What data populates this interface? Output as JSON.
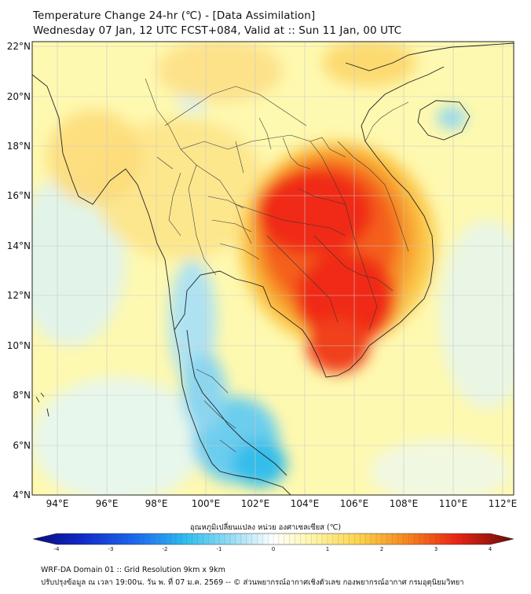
{
  "header": {
    "title": "Temperature Change 24-hr (℃) - [Data Assimilation]",
    "subtitle": "Wednesday 07 Jan, 12 UTC FCST+084, Valid at :: Sun 11 Jan, 00 UTC"
  },
  "map": {
    "lat_ticks": [
      "22°N",
      "20°N",
      "18°N",
      "16°N",
      "14°N",
      "12°N",
      "10°N",
      "8°N",
      "6°N",
      "4°N"
    ],
    "lon_ticks": [
      "94°E",
      "96°E",
      "98°E",
      "100°E",
      "102°E",
      "104°E",
      "106°E",
      "108°E",
      "110°E",
      "112°E"
    ]
  },
  "colorbar": {
    "title": "อุณหภูมิเปลี่ยนแปลง หน่วย องศาเซลเซียส (℃)",
    "ticks": [
      "-4",
      "-3",
      "-2",
      "-1",
      "0",
      "1",
      "2",
      "3",
      "4"
    ]
  },
  "footer": {
    "line1": "WRF-DA Domain 01 :: Grid Resolution 9km x 9km",
    "line2": "ปรับปรุงข้อมูล ณ เวลา 19:00น. วัน พ. ที่ 07 ม.ค. 2569 -- © ส่วนพยากรณ์อากาศเชิงตัวเลข กองพยากรณ์อากาศ กรมอุตุนิยมวิทยา"
  },
  "colors": {
    "background_warm": "#fef9b0",
    "hot_core": "#f21a10",
    "orange": "#f6801e",
    "cool": "#8ed6f2",
    "cold": "#2dbfea",
    "border": "#222222"
  }
}
